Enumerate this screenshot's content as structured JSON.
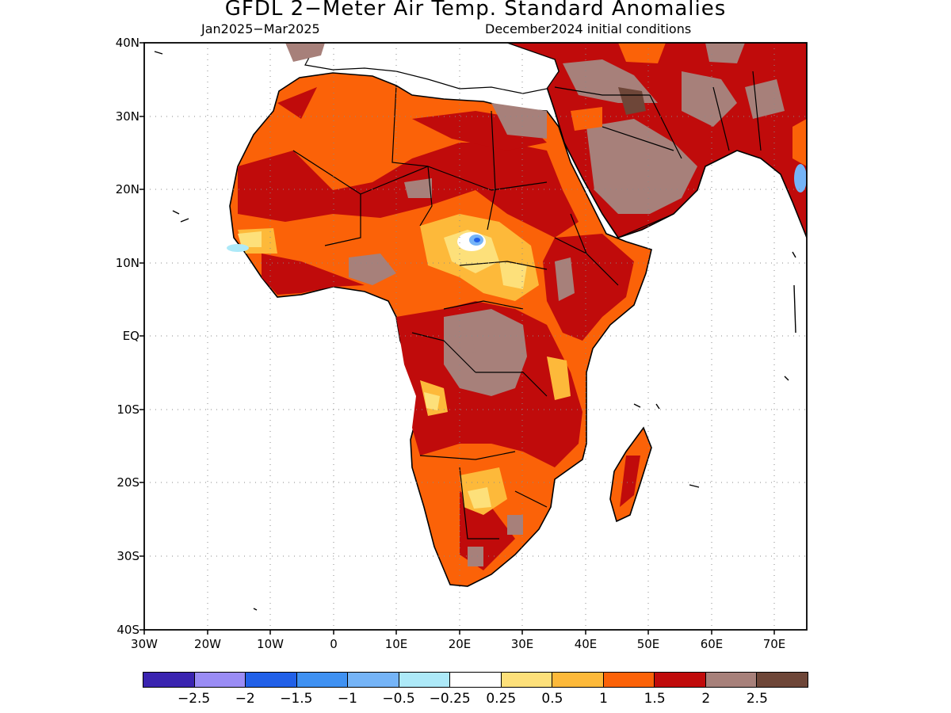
{
  "title": "GFDL 2−Meter Air Temp. Standard Anomalies",
  "period": "Jan2025−Mar2025",
  "initial_conditions": "December2024 initial conditions",
  "lat_labels": [
    "40N",
    "30N",
    "20N",
    "10N",
    "EQ",
    "10S",
    "20S",
    "30S",
    "40S"
  ],
  "lon_labels": [
    "30W",
    "20W",
    "10W",
    "0",
    "10E",
    "20E",
    "30E",
    "40E",
    "50E",
    "60E",
    "70E"
  ],
  "colorbar": {
    "colors": [
      "#3a24b0",
      "#9a8cf5",
      "#2160e8",
      "#3f91f2",
      "#75b4f7",
      "#ade9f8",
      "#ffffff",
      "#fde07a",
      "#fdb93a",
      "#fb6208",
      "#c00b0b",
      "#a7807a",
      "#6e4638"
    ],
    "labels": [
      "−2.5",
      "−2",
      "−1.5",
      "−1",
      "−0.5",
      "−0.25",
      "0.25",
      "0.5",
      "1",
      "1.5",
      "2",
      "2.5"
    ]
  },
  "map": {
    "region": "Africa and the Middle East",
    "lon_range": [
      -30,
      75
    ],
    "lat_range": [
      -40,
      40
    ],
    "gridlines": true
  }
}
